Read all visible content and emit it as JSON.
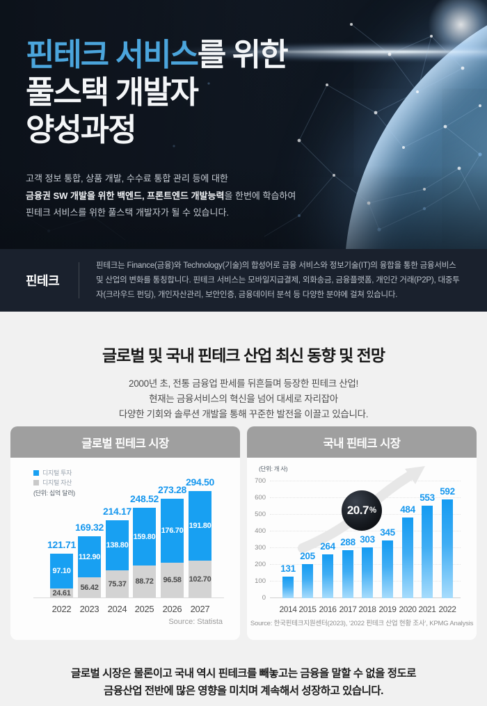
{
  "hero": {
    "title_accent": "핀테크 서비스",
    "title_rest": "를 위한",
    "title_line2": "풀스택 개발자",
    "title_line3": "양성과정",
    "desc_line1": "고객 정보 통합, 상품 개발, 수수료 통합 관리 등에 대한",
    "desc_line2_bold": "금융권 SW 개발을 위한 백엔드, 프론트엔드 개발능력",
    "desc_line2_rest": "을 한번에 학습하여",
    "desc_line3": "핀테크 서비스를 위한 풀스택 개발자가 될 수 있습니다."
  },
  "definition": {
    "label": "핀테크",
    "text": "핀테크는 Finance(금융)와 Technology(기술)의 합성어로 금융 서비스와 정보기술(IT)의 융합을 통한 금융서비스 및 산업의 변화를 통칭합니다. 핀테크 서비스는 모바일지급결제, 외화송금, 금융플랫폼, 개인간 거래(P2P), 대중투자(크라우드 펀딩), 개인자산관리, 보안인증, 금융데이터 분석 등 다양한 분야에 걸쳐 있습니다."
  },
  "trend": {
    "heading": "글로벌 및 국내 핀테크 산업 최신 동향 및 전망",
    "sub_line1": "2000년 초, 전통 금융업 판세를 뒤흔들며 등장한 핀테크 산업!",
    "sub_line2": "현재는 금융서비스의 혁신을 넘어 대세로 자리잡아",
    "sub_line3": "다양한 기회와 솔루션 개발을 통해 꾸준한 발전을 이끌고 있습니다."
  },
  "chart_data": [
    {
      "type": "bar",
      "stacked": true,
      "title": "글로벌 핀테크 시장",
      "unit_label": "(단위: 십억 달러)",
      "legend_position": "top-left",
      "grid": false,
      "categories": [
        "2022",
        "2023",
        "2024",
        "2025",
        "2026",
        "2027"
      ],
      "series": [
        {
          "name": "디지털 투자",
          "color": "#18a0f2",
          "values": [
            97.1,
            112.9,
            138.8,
            159.8,
            176.7,
            191.8
          ]
        },
        {
          "name": "디지털 자산",
          "color": "#d3d3d3",
          "values": [
            24.61,
            56.42,
            75.37,
            88.72,
            96.58,
            102.7
          ]
        }
      ],
      "totals": [
        121.71,
        169.32,
        214.17,
        248.52,
        273.28,
        294.5
      ],
      "ylim": [
        0,
        300
      ],
      "source": "Source: Statista"
    },
    {
      "type": "bar",
      "title": "국내 핀테크 시장",
      "unit_label": "(단위: 개 사)",
      "grid": true,
      "categories": [
        "2014",
        "2015",
        "2016",
        "2017",
        "2018",
        "2019",
        "2020",
        "2021",
        "2022"
      ],
      "values": [
        131,
        205,
        264,
        288,
        303,
        345,
        484,
        553,
        592
      ],
      "yticks": [
        0,
        100,
        200,
        300,
        400,
        500,
        600,
        700
      ],
      "ylim": [
        0,
        700
      ],
      "badge": {
        "value": "20.7",
        "suffix": "%"
      },
      "bar_color_top": "#149bf2",
      "bar_color_bottom": "#a7dcfc",
      "source": "Source: 한국핀테크지원센터(2023), ‘2022 핀테크 산업 현황 조사’, KPMG Analysis"
    }
  ],
  "footer": {
    "line1": "글로벌 시장은 물론이고 국내 역시 핀테크를 빼놓고는 금융을 말할 수 없을 정도로",
    "line2": "금융산업 전반에 많은 영향을 미치며 계속해서 성장하고 있습니다."
  },
  "colors": {
    "accent_blue": "#18a0f2",
    "label_blue": "#1697ee",
    "title_blue": "#4ba5dc",
    "bar_gray": "#d3d3d3",
    "header_gray": "#9f9f9f"
  }
}
